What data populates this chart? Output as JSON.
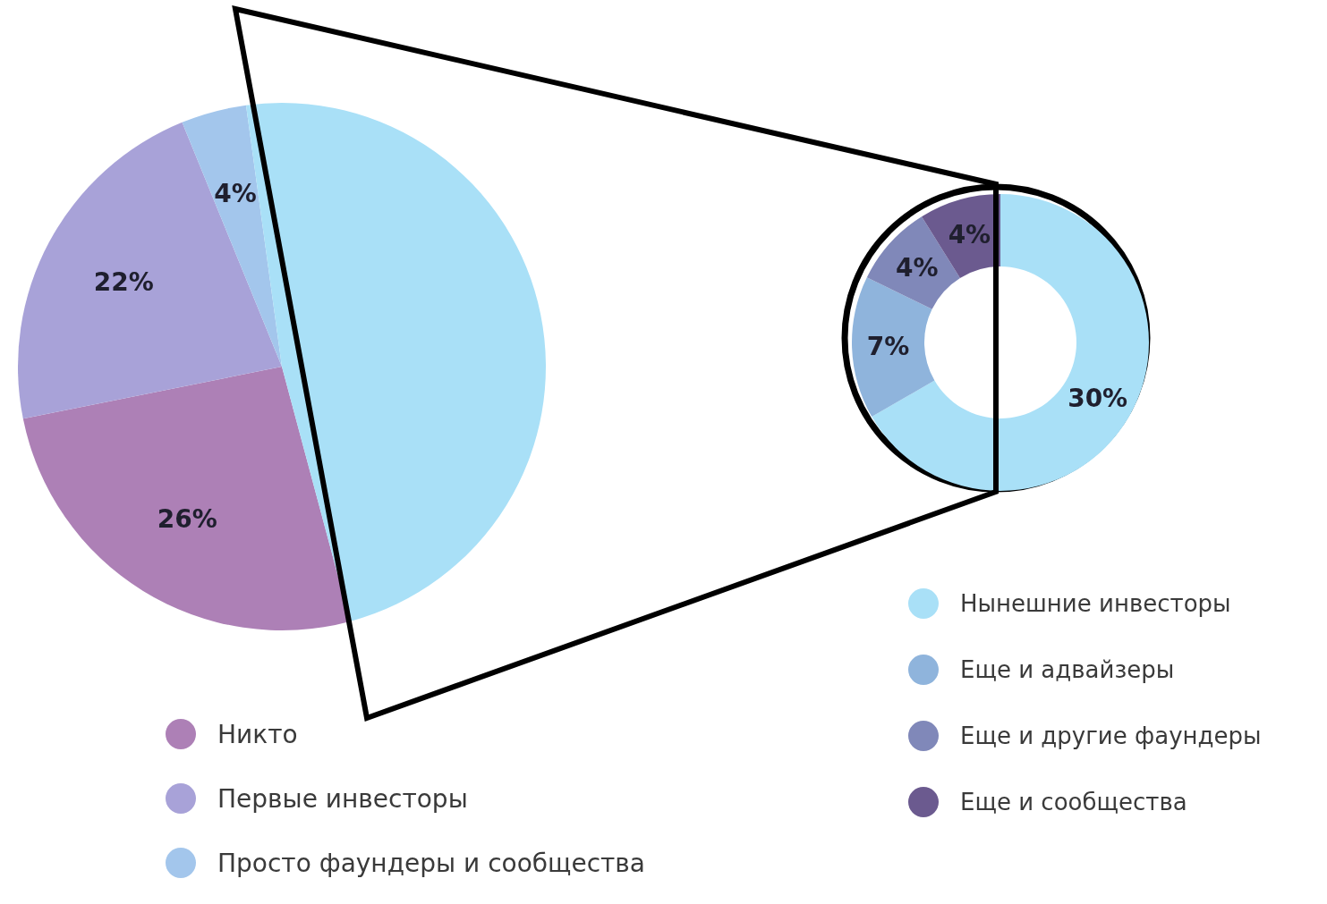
{
  "chart_data": [
    {
      "type": "pie",
      "categories": [
        "Никто",
        "Первые инвесторы",
        "Просто фаундеры и сообщества",
        null
      ],
      "values": [
        26,
        22,
        4,
        48
      ],
      "colors": [
        "#ad80b6",
        "#a8a2d8",
        "#a3c6ec",
        "#a9e0f7"
      ],
      "value_labels": [
        "26%",
        "22%",
        "4%",
        null
      ],
      "legend": "bottom"
    },
    {
      "type": "donut",
      "categories": [
        "Нынешние инвесторы",
        "Еще и адвайзеры",
        "Еще и другие фаундеры",
        "Еще и сообщества"
      ],
      "values": [
        30,
        7,
        4,
        4
      ],
      "colors": [
        "#a9e0f7",
        "#8fb4dc",
        "#8088b9",
        "#6b5a8f"
      ],
      "value_labels": [
        "30%",
        "7%",
        "4%",
        "4%"
      ],
      "legend": "bottom"
    }
  ]
}
